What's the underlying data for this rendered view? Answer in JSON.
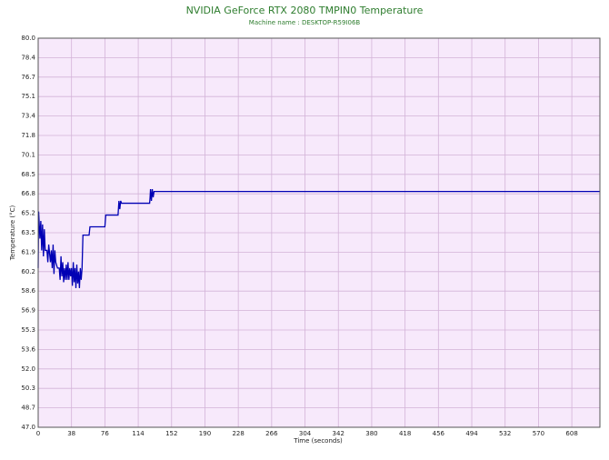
{
  "chart_data": {
    "type": "line",
    "title": "NVIDIA GeForce RTX 2080 TMPIN0 Temperature",
    "subtitle": "Machine name : DESKTOP-R59I06B",
    "ylabel": "Temperature (°C)",
    "xlabel": "Time (seconds)",
    "color": "#0000b4",
    "background": "#f7e9fb",
    "grid": true,
    "grid_color": "#d3b3d8",
    "xlim": [
      0,
      640
    ],
    "ylim": [
      47,
      80
    ],
    "xticks": [
      0,
      38,
      76,
      114,
      152,
      190,
      228,
      266,
      304,
      342,
      380,
      418,
      456,
      494,
      532,
      570,
      608
    ],
    "yticks": [
      {
        "value": 80,
        "label": "80.0"
      },
      {
        "value": 78.35,
        "label": "78.4"
      },
      {
        "value": 76.7,
        "label": "76.7"
      },
      {
        "value": 75.05,
        "label": "75.1"
      },
      {
        "value": 73.4,
        "label": "73.4"
      },
      {
        "value": 71.75,
        "label": "71.8"
      },
      {
        "value": 70.1,
        "label": "70.1"
      },
      {
        "value": 68.45,
        "label": "68.5"
      },
      {
        "value": 66.8,
        "label": "66.8"
      },
      {
        "value": 65.15,
        "label": "65.2"
      },
      {
        "value": 63.5,
        "label": "63.5"
      },
      {
        "value": 61.85,
        "label": "61.9"
      },
      {
        "value": 60.2,
        "label": "60.2"
      },
      {
        "value": 58.55,
        "label": "58.6"
      },
      {
        "value": 56.9,
        "label": "56.9"
      },
      {
        "value": 55.25,
        "label": "55.3"
      },
      {
        "value": 53.6,
        "label": "53.6"
      },
      {
        "value": 51.95,
        "label": "52.0"
      },
      {
        "value": 50.3,
        "label": "50.3"
      },
      {
        "value": 48.65,
        "label": "48.7"
      },
      {
        "value": 47,
        "label": "47.0"
      }
    ],
    "x": [
      0,
      0.5,
      2,
      3,
      4,
      5,
      6,
      7,
      8,
      10,
      11,
      12,
      14,
      15,
      16,
      17,
      18,
      19,
      20,
      22,
      24,
      25,
      26,
      27,
      28,
      29,
      30,
      31,
      32,
      33,
      34,
      35,
      36,
      37,
      38,
      39,
      40,
      41,
      42,
      43,
      44,
      45,
      46,
      47,
      48,
      49,
      50,
      51,
      58,
      59,
      76,
      77,
      91,
      92,
      93,
      94,
      95,
      127,
      127.5,
      128,
      129,
      130,
      131,
      132,
      640
    ],
    "values": [
      60.5,
      65.3,
      63,
      64.5,
      62,
      64.2,
      61.5,
      63.8,
      62,
      62,
      61,
      62.5,
      61,
      62,
      60.5,
      62.5,
      60,
      62,
      61,
      60.5,
      60.5,
      59.5,
      61.5,
      59.8,
      61,
      59.3,
      60.5,
      59.5,
      60.8,
      59.5,
      61,
      59.5,
      60.5,
      59.8,
      60.5,
      59,
      61,
      59.3,
      60.5,
      58.8,
      60.8,
      59.2,
      60.2,
      58.8,
      60.5,
      59.5,
      60.5,
      63.3,
      63.3,
      64,
      64,
      65,
      65,
      66.2,
      65.5,
      66.2,
      66,
      66,
      66.5,
      67.2,
      66.2,
      67.2,
      66.5,
      67,
      67
    ]
  }
}
